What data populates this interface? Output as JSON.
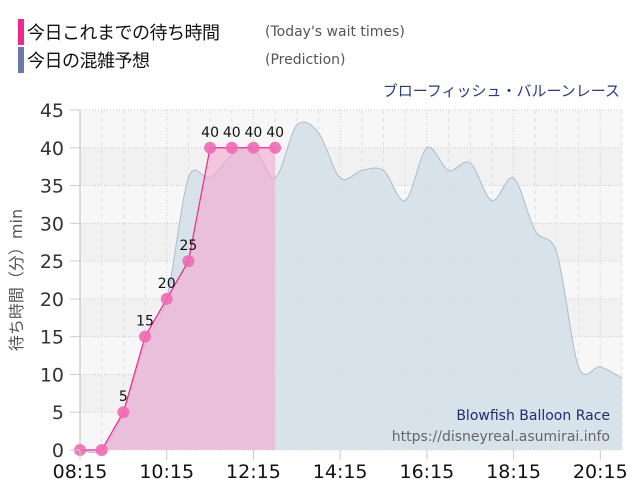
{
  "legend": {
    "items": [
      {
        "label_jp": "今日これまでの待ち時間",
        "label_en": "(Today's wait times)",
        "color": "#f0288c"
      },
      {
        "label_jp": "今日の混雑予想",
        "label_en": "(Prediction)",
        "color": "#6a7aa8"
      }
    ]
  },
  "attraction_name_jp": "ブローフィッシュ・バルーンレース",
  "watermark": {
    "title": "Blowfish Balloon Race",
    "url": "https://disneyreal.asumirai.info"
  },
  "colors": {
    "actual_line": "#f0288c",
    "actual_fill": "#f5a8d2",
    "actual_point": "#ee6ab3",
    "prediction_fill": "#d6e0ea",
    "prediction_line": "#aebccb",
    "overlap_fill": "#dab8d8",
    "plot_bg": "#f4f4f4",
    "grid": "#c8c8c8"
  },
  "chart_data": {
    "type": "area",
    "title": "ブローフィッシュ・バルーンレース",
    "xlabel": "",
    "ylabel": "待ち時間（分）min",
    "ylim": [
      0,
      45
    ],
    "yticks": [
      0,
      5,
      10,
      15,
      20,
      25,
      30,
      35,
      40,
      45
    ],
    "xtick_labels": [
      "08:15",
      "10:15",
      "12:15",
      "14:15",
      "16:15",
      "18:15",
      "20:15"
    ],
    "xlim": [
      "08:15",
      "20:45"
    ],
    "grid": true,
    "legend_position": "top-left",
    "series": [
      {
        "name": "今日これまでの待ち時間 (Today's wait times)",
        "type": "line+area",
        "x": [
          "08:15",
          "08:45",
          "09:15",
          "09:45",
          "10:15",
          "10:45",
          "11:15",
          "11:45",
          "12:15",
          "12:45"
        ],
        "values": [
          0,
          0,
          5,
          15,
          20,
          25,
          40,
          40,
          40,
          40
        ],
        "data_labels": [
          "",
          "",
          "5",
          "15",
          "20",
          "25",
          "40",
          "40",
          "40",
          "40"
        ]
      },
      {
        "name": "今日の混雑予想 (Prediction)",
        "type": "area",
        "x": [
          "08:15",
          "08:45",
          "09:15",
          "09:45",
          "10:15",
          "10:45",
          "11:15",
          "11:45",
          "12:15",
          "12:45",
          "13:15",
          "13:45",
          "14:15",
          "14:45",
          "15:15",
          "15:45",
          "16:15",
          "16:45",
          "17:15",
          "17:45",
          "18:15",
          "18:45",
          "19:15",
          "19:45",
          "20:15",
          "20:45"
        ],
        "values": [
          0,
          0,
          5,
          14,
          20,
          36,
          36,
          39,
          40,
          36,
          43,
          42,
          36,
          37,
          37,
          33,
          40,
          37,
          38,
          33,
          36,
          29,
          26,
          11,
          11,
          9.5
        ]
      }
    ]
  }
}
